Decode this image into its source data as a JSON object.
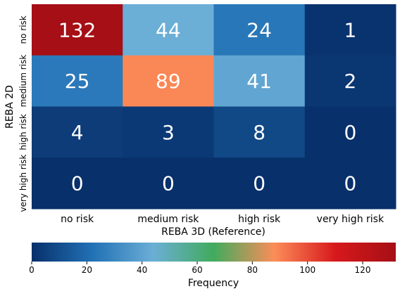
{
  "chart_data": {
    "type": "heatmap",
    "xlabel": "REBA 3D (Reference)",
    "ylabel": "REBA 2D",
    "x_categories": [
      "no risk",
      "medium risk",
      "high risk",
      "very high risk"
    ],
    "y_categories": [
      "no risk",
      "medium risk",
      "high risk",
      "very high risk"
    ],
    "values": [
      [
        132,
        44,
        24,
        1
      ],
      [
        25,
        89,
        41,
        2
      ],
      [
        4,
        3,
        8,
        0
      ],
      [
        0,
        0,
        0,
        0
      ]
    ],
    "colorbar": {
      "label": "Frequency",
      "min": 0,
      "max": 132,
      "ticks": [
        0,
        20,
        40,
        60,
        80,
        100,
        120
      ],
      "colormap": [
        "#08306b",
        "#2171b5",
        "#6baed6",
        "#41ab5d",
        "#fc8d59",
        "#d7191c",
        "#a50f15"
      ]
    }
  }
}
